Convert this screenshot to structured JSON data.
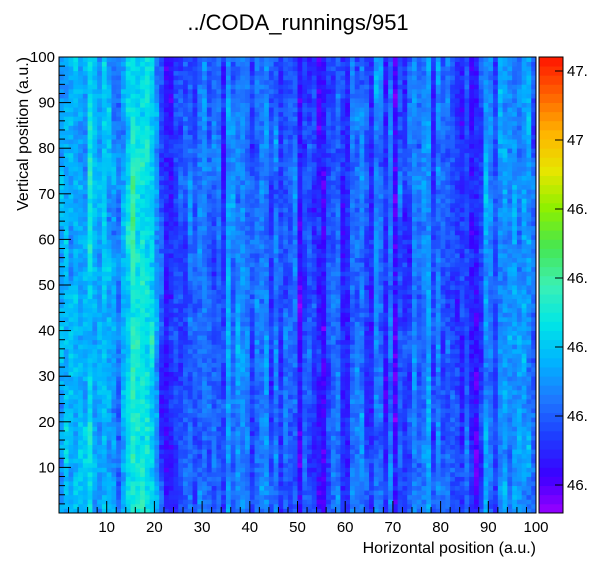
{
  "chart_data": {
    "type": "heatmap",
    "title": "../CODA_runnings/951",
    "xlabel": "Horizontal position (a.u.)",
    "ylabel": "Vertical position (a.u.)",
    "xlim": [
      0,
      100
    ],
    "ylim": [
      0,
      100
    ],
    "x_ticks": [
      "10",
      "20",
      "30",
      "40",
      "50",
      "60",
      "70",
      "80",
      "90",
      "100"
    ],
    "y_ticks": [
      "10",
      "20",
      "30",
      "40",
      "50",
      "60",
      "70",
      "80",
      "90",
      "100"
    ],
    "colorbar_labels": [
      "46.",
      "46.",
      "46.",
      "46.",
      "46.",
      "47",
      "47."
    ],
    "colorbar_range": [
      46.15,
      47.17
    ],
    "palette": [
      "#9a00ff",
      "#3a00ff",
      "#1e3cff",
      "#1e78ff",
      "#00b4ff",
      "#00e6e6",
      "#3cf0b4",
      "#46e650",
      "#8cf000",
      "#e6e600",
      "#ffb400",
      "#ff6400",
      "#ff1400"
    ],
    "columns": 100,
    "rows": 100,
    "column_profile": [
      {
        "x": 1,
        "value": 46.45
      },
      {
        "x": 5,
        "value": 46.52
      },
      {
        "x": 8,
        "value": 46.5
      },
      {
        "x": 10,
        "value": 46.58
      },
      {
        "x": 12,
        "value": 46.38
      },
      {
        "x": 15,
        "value": 46.55
      },
      {
        "x": 17,
        "value": 46.6
      },
      {
        "x": 20,
        "value": 46.47
      },
      {
        "x": 23,
        "value": 46.28
      },
      {
        "x": 27,
        "value": 46.44
      },
      {
        "x": 31,
        "value": 46.35
      },
      {
        "x": 36,
        "value": 46.4
      },
      {
        "x": 40,
        "value": 46.34
      },
      {
        "x": 45,
        "value": 46.38
      },
      {
        "x": 50,
        "value": 46.33
      },
      {
        "x": 54,
        "value": 46.28
      },
      {
        "x": 58,
        "value": 46.37
      },
      {
        "x": 62,
        "value": 46.33
      },
      {
        "x": 67,
        "value": 46.36
      },
      {
        "x": 71,
        "value": 46.31
      },
      {
        "x": 75,
        "value": 46.38
      },
      {
        "x": 80,
        "value": 46.4
      },
      {
        "x": 84,
        "value": 46.37
      },
      {
        "x": 88,
        "value": 46.34
      },
      {
        "x": 92,
        "value": 46.41
      },
      {
        "x": 96,
        "value": 46.38
      },
      {
        "x": 100,
        "value": 46.44
      }
    ]
  }
}
